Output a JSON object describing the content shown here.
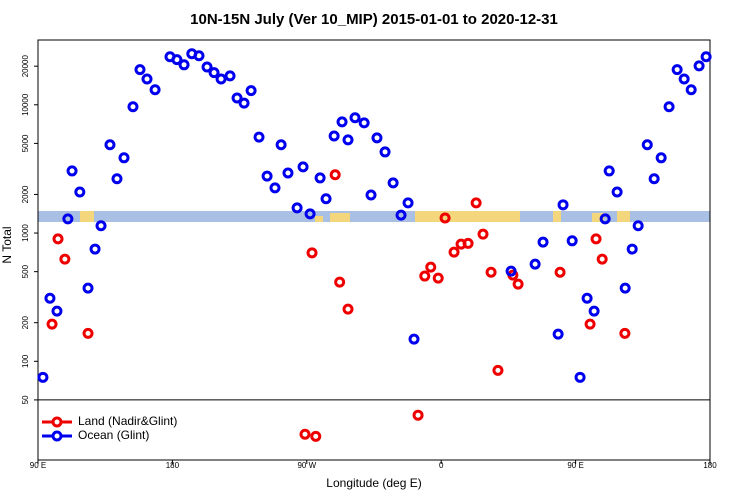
{
  "chart_data": {
    "type": "scatter",
    "title": "10N-15N July (Ver 10_MIP)   2015-01-01 to 2020-12-31",
    "x_label": "Longitude (deg E)",
    "y_label": "N Total",
    "log_y": true,
    "legend": "bottom-left",
    "xlim": [
      90,
      540
    ],
    "xticks": [
      {
        "value": 90,
        "label": "90 E"
      },
      180,
      {
        "value": 270,
        "label": "90 W"
      },
      {
        "value": 360,
        "label": "0"
      },
      {
        "value": 450,
        "label": "90 E"
      },
      {
        "value": 540,
        "label": "180"
      }
    ],
    "ylim": [
      17,
      32000
    ],
    "yticks": [
      50,
      100,
      200,
      500,
      1000,
      2000,
      5000,
      10000,
      20000
    ],
    "series": [
      {
        "name": "Land (Nadir&Glint)",
        "color": "#ee0000",
        "x": [
          99.4,
          103.4,
          108,
          123.5,
          273.5,
          268.8,
          276,
          289,
          292,
          297.6,
          344.5,
          349,
          353,
          358,
          362.6,
          368.6,
          373.3,
          378,
          383.4,
          388,
          393.4,
          398,
          408,
          411.5,
          439.6,
          459.7,
          463.7,
          467.8,
          483
        ],
        "values": [
          195,
          900,
          626,
          165,
          700,
          27,
          26,
          2850,
          414,
          255,
          38,
          462,
          542,
          445,
          1310,
          710,
          820,
          830,
          1720,
          980,
          495,
          85,
          470,
          400,
          495,
          195,
          900,
          626,
          165
        ]
      },
      {
        "name": "Ocean (Glint)",
        "color": "#0000ee",
        "x": [
          93.3,
          98,
          102.7,
          110,
          112.8,
          118,
          123.5,
          128.2,
          132.2,
          138.2,
          142.9,
          147.6,
          153.6,
          158.3,
          163,
          168.4,
          178.4,
          183,
          187.8,
          193,
          197.8,
          203.2,
          207.9,
          212.6,
          218.6,
          223.3,
          228,
          232.7,
          238,
          243.4,
          248.7,
          252.8,
          257.4,
          263.5,
          267.5,
          272.2,
          278.9,
          282.9,
          288.3,
          293.6,
          297.6,
          302.3,
          308.4,
          313,
          317,
          322.4,
          327.8,
          333.1,
          337.8,
          341.8,
          406.8,
          422.9,
          428.2,
          438.3,
          441.6,
          447.7,
          453,
          457.7,
          462.4,
          469.8,
          472.5,
          477.8,
          483.2,
          487.9,
          491.9,
          498,
          502.6,
          507.3,
          512.6,
          518,
          522.7,
          527.4,
          532.7,
          537.4
        ],
        "values": [
          75,
          310,
          246,
          1290,
          3050,
          2090,
          372,
          750,
          1140,
          4880,
          2650,
          3860,
          9650,
          18800,
          15900,
          13100,
          23700,
          22500,
          20500,
          25000,
          24100,
          19700,
          17800,
          15900,
          16800,
          11300,
          10300,
          12900,
          5600,
          2780,
          2250,
          4880,
          2940,
          1570,
          3280,
          1410,
          2690,
          1850,
          5710,
          7360,
          5330,
          7920,
          7230,
          1980,
          5520,
          4290,
          2460,
          1380,
          1720,
          149,
          505,
          572,
          850,
          163,
          1660,
          870,
          75,
          310,
          246,
          1290,
          3050,
          2090,
          372,
          750,
          1140,
          4880,
          2650,
          3860,
          9650,
          18800,
          15900,
          13100,
          20100,
          23700
        ]
      }
    ]
  }
}
